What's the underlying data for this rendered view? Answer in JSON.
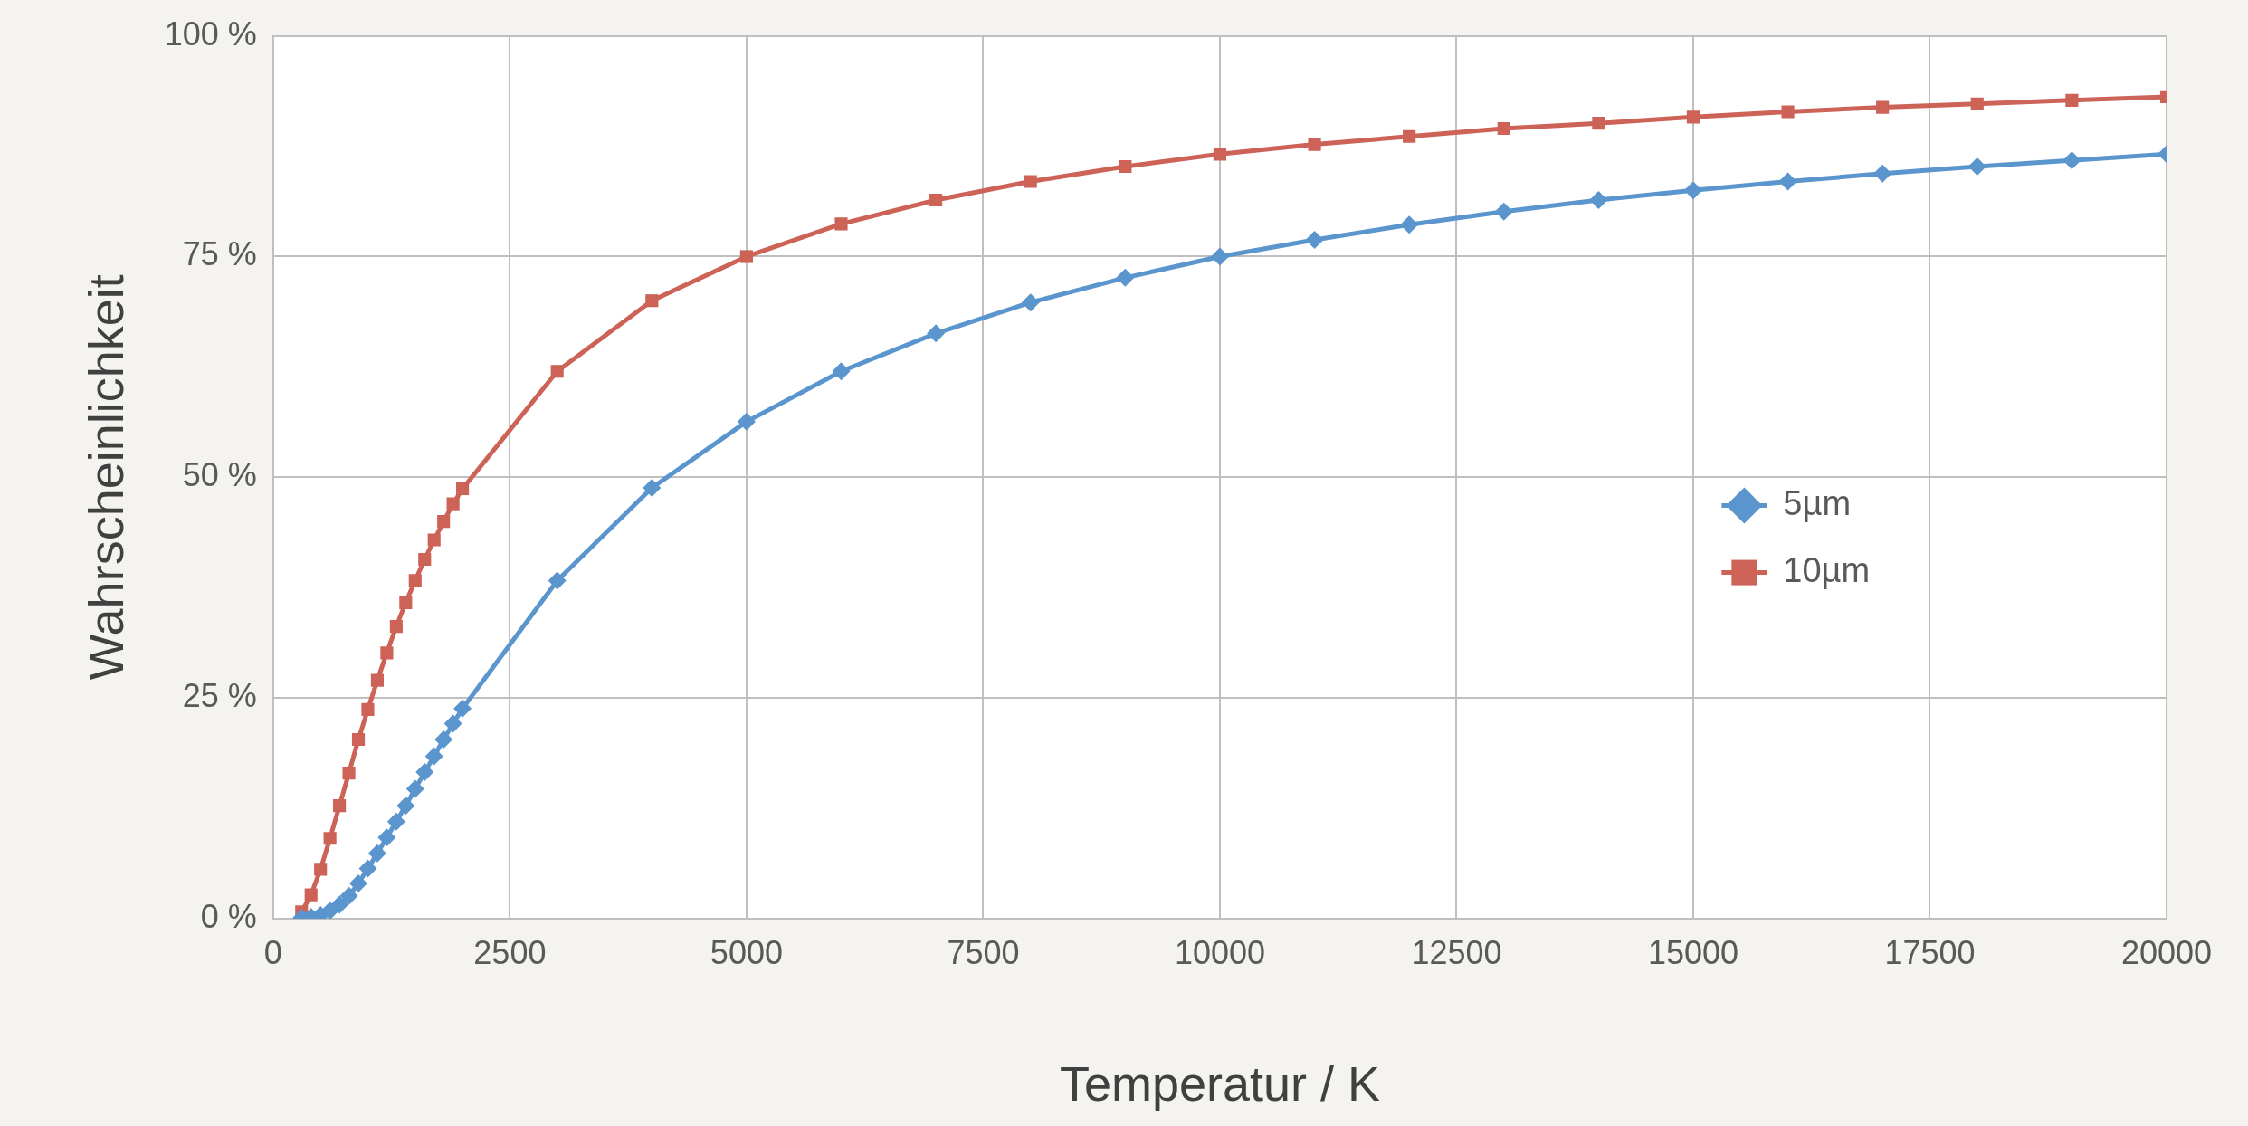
{
  "chart_data": {
    "type": "line",
    "xlabel": "Temperatur / K",
    "ylabel": "Wahrscheinlichkeit",
    "x": [
      300,
      400,
      500,
      600,
      700,
      800,
      900,
      1000,
      1100,
      1200,
      1300,
      1400,
      1500,
      1600,
      1700,
      1800,
      1900,
      2000,
      3000,
      4000,
      5000,
      6000,
      7000,
      8000,
      9000,
      10000,
      11000,
      12000,
      13000,
      14000,
      15000,
      16000,
      17000,
      18000,
      19000,
      20000
    ],
    "series": [
      {
        "name": "5µm",
        "color": "#5b95cd",
        "marker": "diamond",
        "values": [
          0.1,
          0.2,
          0.4,
          0.9,
          1.6,
          2.6,
          4.0,
          5.7,
          7.4,
          9.2,
          11,
          12.8,
          14.7,
          16.6,
          18.4,
          20.3,
          22.1,
          23.8,
          38.3,
          48.8,
          56.3,
          62,
          66.3,
          69.8,
          72.6,
          75,
          76.9,
          78.6,
          80.1,
          81.4,
          82.5,
          83.5,
          84.4,
          85.2,
          85.9,
          86.6
        ]
      },
      {
        "name": "10µm",
        "color": "#cd6257",
        "marker": "square",
        "values": [
          0.8,
          2.7,
          5.6,
          9.1,
          12.8,
          16.5,
          20.3,
          23.7,
          27,
          30.1,
          33.1,
          35.8,
          38.3,
          40.7,
          42.9,
          45,
          47,
          48.7,
          62,
          70,
          75,
          78.7,
          81.4,
          83.5,
          85.2,
          86.6,
          87.7,
          88.6,
          89.5,
          90.1,
          90.8,
          91.4,
          91.9,
          92.3,
          92.7,
          93.1
        ]
      }
    ],
    "xlim": [
      0,
      20000
    ],
    "xticks": [
      0,
      2500,
      5000,
      7500,
      10000,
      12500,
      15000,
      17500,
      20000
    ],
    "ylim": [
      0,
      100
    ],
    "yticks": [
      {
        "value": 0,
        "label": "0 %"
      },
      {
        "value": 25,
        "label": "25 %"
      },
      {
        "value": 50,
        "label": "50 %"
      },
      {
        "value": 75,
        "label": "75 %"
      },
      {
        "value": 100,
        "label": "100 %"
      }
    ],
    "grid": true,
    "legend": "right",
    "line_style": "solid"
  }
}
